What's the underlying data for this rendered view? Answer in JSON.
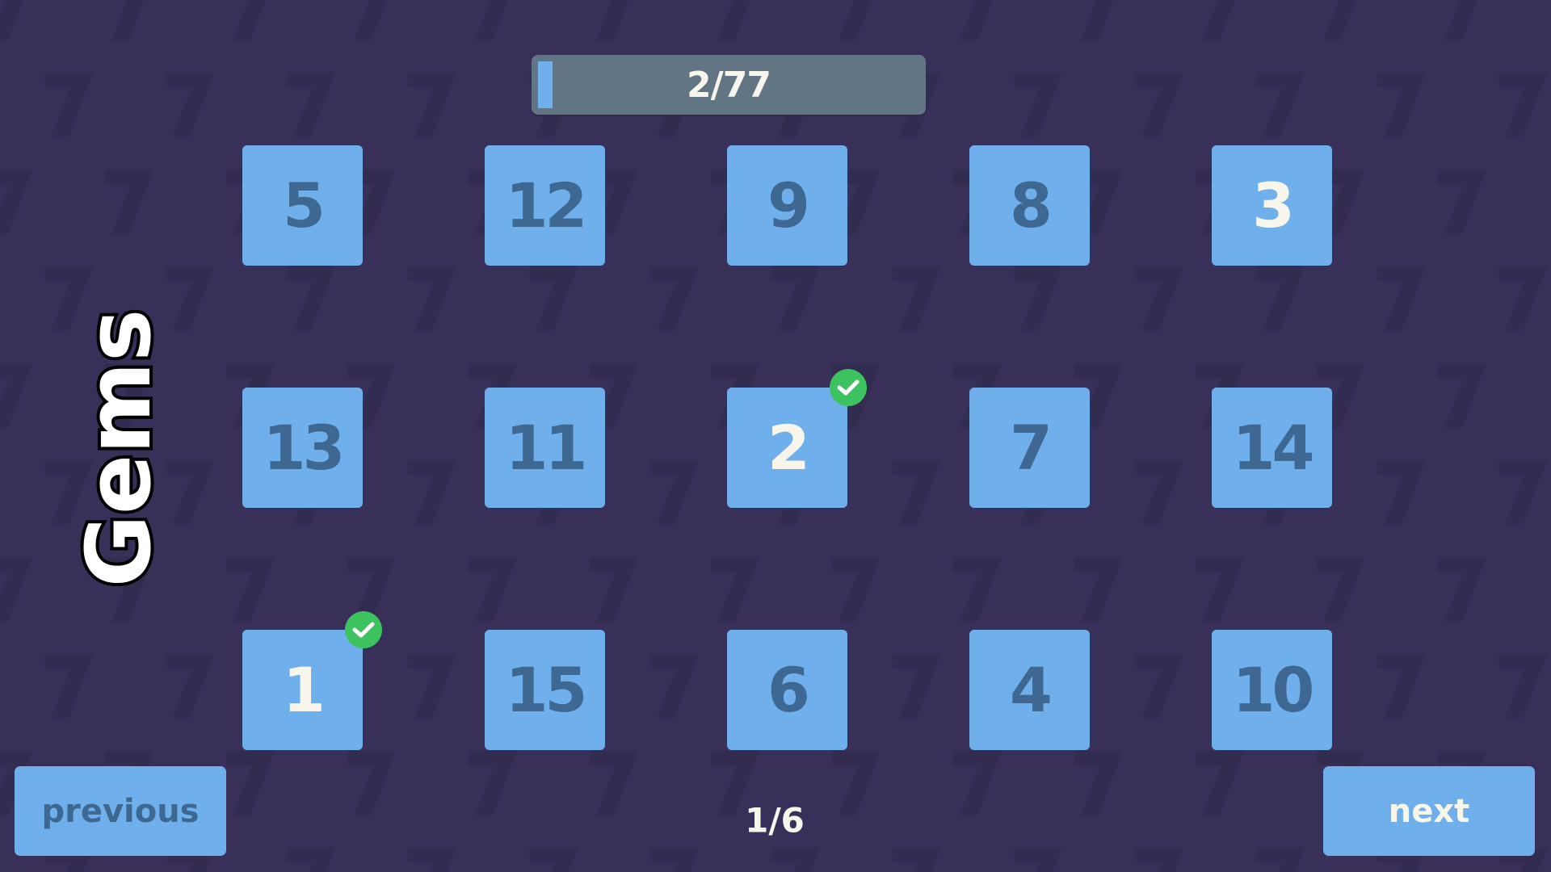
{
  "title": "Gems",
  "progress": {
    "label": "2/77",
    "completed": 2,
    "total": 77
  },
  "levels": [
    {
      "number": "5",
      "completed": false
    },
    {
      "number": "12",
      "completed": false
    },
    {
      "number": "9",
      "completed": false
    },
    {
      "number": "8",
      "completed": false
    },
    {
      "number": "3",
      "completed": false,
      "highlight": true
    },
    {
      "number": "13",
      "completed": false
    },
    {
      "number": "11",
      "completed": false
    },
    {
      "number": "2",
      "completed": true
    },
    {
      "number": "7",
      "completed": false
    },
    {
      "number": "14",
      "completed": false
    },
    {
      "number": "1",
      "completed": true
    },
    {
      "number": "15",
      "completed": false
    },
    {
      "number": "6",
      "completed": false
    },
    {
      "number": "4",
      "completed": false
    },
    {
      "number": "10",
      "completed": false
    }
  ],
  "nav": {
    "previous_label": "previous",
    "next_label": "next",
    "page_label": "1/6"
  },
  "colors": {
    "background": "#383058",
    "tile": "#6fb0ec",
    "tile_text": "#3e6891",
    "tile_text_done": "#f8f6ea",
    "check": "#3cc25f",
    "progress_track": "#627585"
  },
  "icons": {
    "completed": "check-circle-icon"
  }
}
